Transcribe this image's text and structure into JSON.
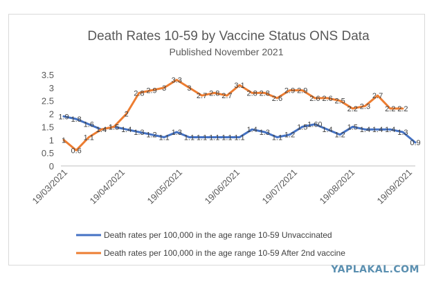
{
  "chart_data": {
    "type": "line",
    "title": "Death Rates 10-59  by Vaccine Status ONS Data",
    "subtitle": "Published November 2021",
    "xlabel": "",
    "ylabel": "",
    "ylim": [
      0,
      3.5
    ],
    "y_ticks": [
      "0",
      "0.5",
      "1",
      "1.5",
      "2",
      "2.5",
      "3",
      "3.5"
    ],
    "x_tick_labels": [
      "19/03/2021",
      "19/04/2021",
      "19/05/2021",
      "19/06/2021",
      "19/07/2021",
      "19/08/2021",
      "19/09/2021"
    ],
    "grid": false,
    "legend_position": "bottom",
    "series": [
      {
        "name": "Death rates per 100,000 in the age range 10-59 Unvaccinated",
        "color": "#4472c4",
        "values": [
          1.9,
          1.8,
          1.6,
          1.4,
          1.5,
          1.4,
          1.3,
          1.2,
          1.1,
          1.3,
          1.1,
          1.1,
          1.1,
          1.1,
          1.1,
          1.4,
          1.3,
          1.1,
          1.2,
          1.5,
          1.6,
          1.4,
          1.2,
          1.5,
          1.4,
          1.4,
          1.4,
          1.3,
          0.9
        ],
        "labels": [
          "1.9",
          "1.8",
          "1.6",
          "1.4",
          "1.5",
          "1.4",
          "1.3",
          "1.2",
          "1.1",
          "1.3",
          "1.1",
          "1.1",
          "1.1",
          "1.1",
          "1.1",
          "1.4",
          "1.3",
          "1.1",
          "1.2",
          "1.5",
          "1.60",
          "1.4",
          "1.2",
          "1.5",
          "1.4",
          "1.4",
          "1.4",
          "1.3",
          "0.9"
        ]
      },
      {
        "name": "Death rates per 100,000 in the age range 10-59 After 2nd  vaccine",
        "color": "#ed7d31",
        "values": [
          1,
          0.6,
          1.1,
          1.4,
          1.5,
          2,
          2.8,
          2.9,
          3,
          3.3,
          3,
          2.7,
          2.8,
          2.7,
          3.1,
          2.8,
          2.8,
          2.6,
          2.9,
          2.9,
          2.6,
          2.6,
          2.5,
          2.2,
          2.3,
          2.7,
          2.2,
          2.2
        ],
        "labels": [
          "1",
          "0.6",
          "1.1",
          "1.4",
          "1.5",
          "2",
          "2.8",
          "2.9",
          "3",
          "3.3",
          "3",
          "2.7",
          "2.8",
          "2.7",
          "3.1",
          "2.8",
          "2.8",
          "2.6",
          "2.9",
          "2.9",
          "2.6",
          "2.6",
          "2.5",
          "2.2",
          "2.3",
          "2.7",
          "2.2",
          "2.2"
        ]
      }
    ]
  },
  "watermark": "YAPLAKAL.COM"
}
